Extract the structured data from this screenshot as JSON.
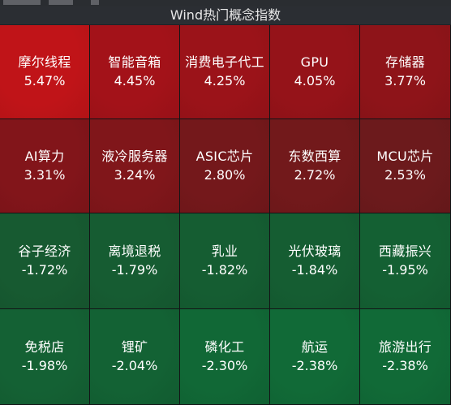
{
  "header": {
    "title": "Wind热门概念指数"
  },
  "tiles": [
    {
      "name": "摩尔线程",
      "pct": "5.47%",
      "color": "#c01418"
    },
    {
      "name": "智能音箱",
      "pct": "4.45%",
      "color": "#a31219"
    },
    {
      "name": "消费电子代工",
      "pct": "4.25%",
      "color": "#9b1319"
    },
    {
      "name": "GPU",
      "pct": "4.05%",
      "color": "#951319"
    },
    {
      "name": "存储器",
      "pct": "3.77%",
      "color": "#8e1419"
    },
    {
      "name": "AI算力",
      "pct": "3.31%",
      "color": "#82151a"
    },
    {
      "name": "液冷服务器",
      "pct": "3.24%",
      "color": "#80161a"
    },
    {
      "name": "ASIC芯片",
      "pct": "2.80%",
      "color": "#74181b"
    },
    {
      "name": "东数西算",
      "pct": "2.72%",
      "color": "#72191b"
    },
    {
      "name": "MCU芯片",
      "pct": "2.53%",
      "color": "#6c1a1c"
    },
    {
      "name": "谷子经济",
      "pct": "-1.72%",
      "color": "#175a31"
    },
    {
      "name": "离境退税",
      "pct": "-1.79%",
      "color": "#165c32"
    },
    {
      "name": "乳业",
      "pct": "-1.82%",
      "color": "#155d32"
    },
    {
      "name": "光伏玻璃",
      "pct": "-1.84%",
      "color": "#155d32"
    },
    {
      "name": "西藏振兴",
      "pct": "-1.95%",
      "color": "#146033"
    },
    {
      "name": "免税店",
      "pct": "-1.98%",
      "color": "#146134"
    },
    {
      "name": "锂矿",
      "pct": "-2.04%",
      "color": "#136234"
    },
    {
      "name": "磷化工",
      "pct": "-2.30%",
      "color": "#116836"
    },
    {
      "name": "航运",
      "pct": "-2.38%",
      "color": "#116a37"
    },
    {
      "name": "旅游出行",
      "pct": "-2.38%",
      "color": "#116a37"
    }
  ]
}
